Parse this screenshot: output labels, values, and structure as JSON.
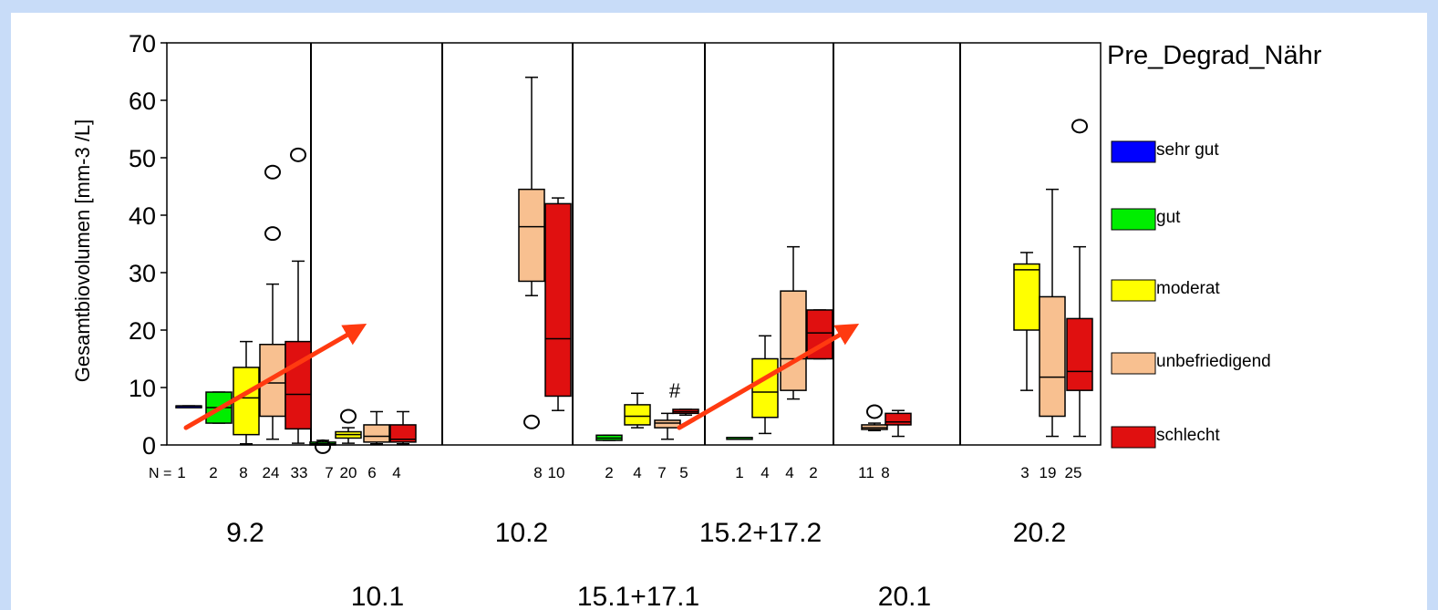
{
  "colors": {
    "background_frame": "#c8dcf8",
    "arrow": "#ff3a10"
  },
  "chart_data": {
    "type": "box",
    "title": "",
    "ylabel": "Gesamtbiovolumen [mm-3 /L]",
    "ylim": [
      0,
      70
    ],
    "yticks": [
      0,
      10,
      20,
      30,
      40,
      50,
      60,
      70
    ],
    "grid": false,
    "legend": {
      "title": "Pre_Degrad_Nähr",
      "position": "right",
      "items": [
        {
          "label": "sehr gut",
          "color": "#0000ff"
        },
        {
          "label": "gut",
          "color": "#00ee00"
        },
        {
          "label": "moderat",
          "color": "#ffff00"
        },
        {
          "label": "unbefriedigend",
          "color": "#f8c090"
        },
        {
          "label": "schlecht",
          "color": "#e01010"
        }
      ]
    },
    "n_prefix": "N =",
    "groups_row1": [
      "9.2",
      "10.2",
      "15.2+17.2",
      "20.2"
    ],
    "groups_row2": [
      "10.1",
      "15.1+17.1",
      "20.1"
    ],
    "panels": [
      {
        "label": "9.2",
        "boxes": [
          {
            "cat": "sehr gut",
            "n": "1",
            "min": 6.8,
            "q1": 6.8,
            "median": 6.8,
            "q3": 6.8,
            "max": 6.8
          },
          {
            "cat": "gut",
            "n": "2",
            "min": 3.8,
            "q1": 3.8,
            "median": 6.5,
            "q3": 9.2,
            "max": 9.2
          },
          {
            "cat": "moderat",
            "n": "8",
            "min": 0.2,
            "q1": 1.8,
            "median": 8.2,
            "q3": 13.5,
            "max": 18.0
          },
          {
            "cat": "unbefriedigend",
            "n": "24",
            "min": 1.0,
            "q1": 5.0,
            "median": 10.8,
            "q3": 17.5,
            "max": 28.0,
            "outliers": [
              36.8,
              47.5
            ]
          },
          {
            "cat": "schlecht",
            "n": "33",
            "min": 0.3,
            "q1": 2.8,
            "median": 8.8,
            "q3": 18.0,
            "max": 32.0,
            "outliers": [
              50.5
            ]
          }
        ]
      },
      {
        "label": "10.1",
        "boxes": [
          {
            "cat": "gut",
            "n": "7",
            "min": 0.0,
            "q1": 0.0,
            "median": 0.2,
            "q3": 0.5,
            "max": 0.8,
            "outliers": [
              -0.3
            ]
          },
          {
            "cat": "moderat",
            "n": "20",
            "min": 0.3,
            "q1": 1.2,
            "median": 1.8,
            "q3": 2.3,
            "max": 3.0,
            "outliers": [
              5.0
            ]
          },
          {
            "cat": "unbefriedigend",
            "n": "6",
            "min": 0.2,
            "q1": 0.5,
            "median": 1.5,
            "q3": 3.5,
            "max": 5.8
          },
          {
            "cat": "schlecht",
            "n": "4",
            "min": 0.2,
            "q1": 0.5,
            "median": 1.0,
            "q3": 3.5,
            "max": 5.8
          }
        ]
      },
      {
        "label": "10.2",
        "boxes": [
          {
            "cat": "unbefriedigend",
            "n": "8",
            "min": 26.0,
            "q1": 28.5,
            "median": 38.0,
            "q3": 44.5,
            "max": 64.0,
            "outliers": [
              4.0
            ]
          },
          {
            "cat": "schlecht",
            "n": "10",
            "min": 6.0,
            "q1": 8.5,
            "median": 18.5,
            "q3": 42.0,
            "max": 43.0
          }
        ]
      },
      {
        "label": "15.1+17.1",
        "boxes": [
          {
            "cat": "gut",
            "n": "2",
            "min": 0.8,
            "q1": 0.8,
            "median": 1.2,
            "q3": 1.7,
            "max": 1.7
          },
          {
            "cat": "moderat",
            "n": "4",
            "min": 3.0,
            "q1": 3.5,
            "median": 5.0,
            "q3": 7.0,
            "max": 9.0
          },
          {
            "cat": "unbefriedigend",
            "n": "7",
            "min": 1.0,
            "q1": 3.0,
            "median": 3.8,
            "q3": 4.3,
            "max": 5.5,
            "extremes": [
              9.5
            ]
          },
          {
            "cat": "schlecht",
            "n": "5",
            "min": 5.2,
            "q1": 5.5,
            "median": 5.8,
            "q3": 6.2,
            "max": 6.2
          }
        ]
      },
      {
        "label": "15.2+17.2",
        "boxes": [
          {
            "cat": "gut",
            "n": "1",
            "min": 1.3,
            "q1": 1.3,
            "median": 1.3,
            "q3": 1.3,
            "max": 1.3
          },
          {
            "cat": "moderat",
            "n": "4",
            "min": 2.0,
            "q1": 4.8,
            "median": 9.2,
            "q3": 15.0,
            "max": 19.0
          },
          {
            "cat": "unbefriedigend",
            "n": "4",
            "min": 8.0,
            "q1": 9.5,
            "median": 15.0,
            "q3": 26.8,
            "max": 34.5
          },
          {
            "cat": "schlecht",
            "n": "2",
            "min": 15.0,
            "q1": 15.0,
            "median": 19.5,
            "q3": 23.5,
            "max": 23.5
          }
        ]
      },
      {
        "label": "20.1",
        "boxes": [
          {
            "cat": "unbefriedigend",
            "n": "11",
            "min": 2.5,
            "q1": 2.7,
            "median": 3.0,
            "q3": 3.5,
            "max": 3.8,
            "outliers": [
              5.8
            ]
          },
          {
            "cat": "schlecht",
            "n": "8",
            "min": 1.5,
            "q1": 3.5,
            "median": 4.0,
            "q3": 5.5,
            "max": 6.0
          }
        ]
      },
      {
        "label": "20.2",
        "boxes": [
          {
            "cat": "moderat",
            "n": "3",
            "min": 9.5,
            "q1": 20.0,
            "median": 30.5,
            "q3": 31.5,
            "max": 33.5
          },
          {
            "cat": "unbefriedigend",
            "n": "19",
            "min": 1.5,
            "q1": 5.0,
            "median": 11.8,
            "q3": 25.8,
            "max": 44.5
          },
          {
            "cat": "schlecht",
            "n": "25",
            "min": 1.5,
            "q1": 9.5,
            "median": 12.8,
            "q3": 22.0,
            "max": 34.5,
            "outliers": [
              55.5
            ]
          }
        ]
      }
    ],
    "arrows": [
      {
        "from": {
          "panel": "9.2",
          "y": 3
        },
        "to": {
          "panel": "10.1",
          "y": 20
        }
      },
      {
        "from": {
          "panel": "15.1+17.1",
          "y": 3
        },
        "to": {
          "panel": "15.2+17.2",
          "y": 20
        }
      }
    ]
  }
}
